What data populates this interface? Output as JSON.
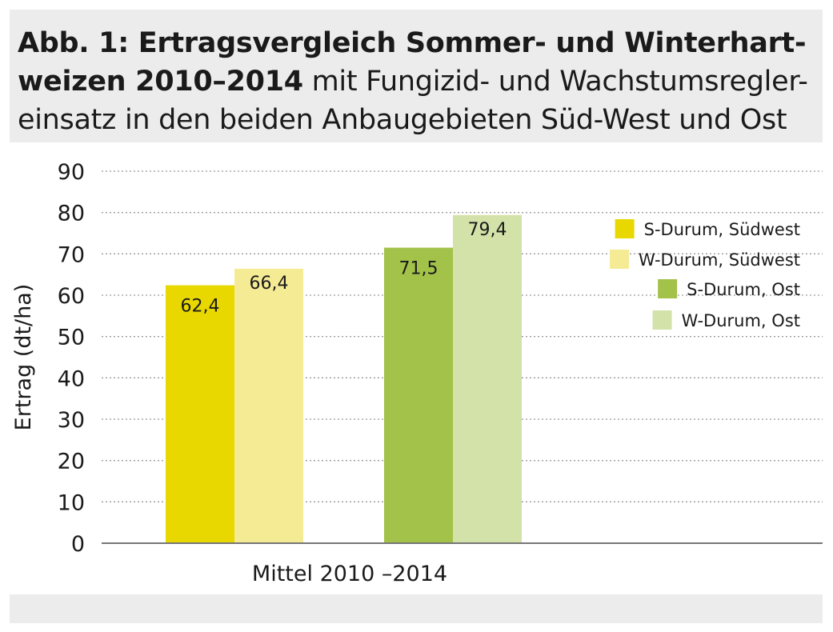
{
  "title": {
    "line1_bold": "Abb. 1: Ertragsvergleich Sommer- und Winterhart-",
    "line2_bold": "weizen 2010–2014",
    "line2_rest": " mit Fungizid- und Wachstumsregler-",
    "line3": "einsatz in den beiden Anbaugebieten Süd-West und Ost"
  },
  "chart_data": {
    "type": "bar",
    "categories": [
      "Mittel 2010 –2014"
    ],
    "series": [
      {
        "name": "S-Durum, Südwest",
        "values": [
          62.4
        ],
        "label": "62,4",
        "color": "#e8d800"
      },
      {
        "name": "W-Durum, Südwest",
        "values": [
          66.4
        ],
        "label": "66,4",
        "color": "#f5eb95"
      },
      {
        "name": "S-Durum, Ost",
        "values": [
          71.5
        ],
        "label": "71,5",
        "color": "#a3c24a"
      },
      {
        "name": "W-Durum, Ost",
        "values": [
          79.4
        ],
        "label": "79,4",
        "color": "#d3e2a8"
      }
    ],
    "ylabel": "Ertrag (dt/ha)",
    "xlabel": "",
    "ylim": [
      0,
      90
    ],
    "yticks": [
      0,
      10,
      20,
      30,
      40,
      50,
      60,
      70,
      80,
      90
    ],
    "grid": true,
    "legend_position": "top-right"
  }
}
